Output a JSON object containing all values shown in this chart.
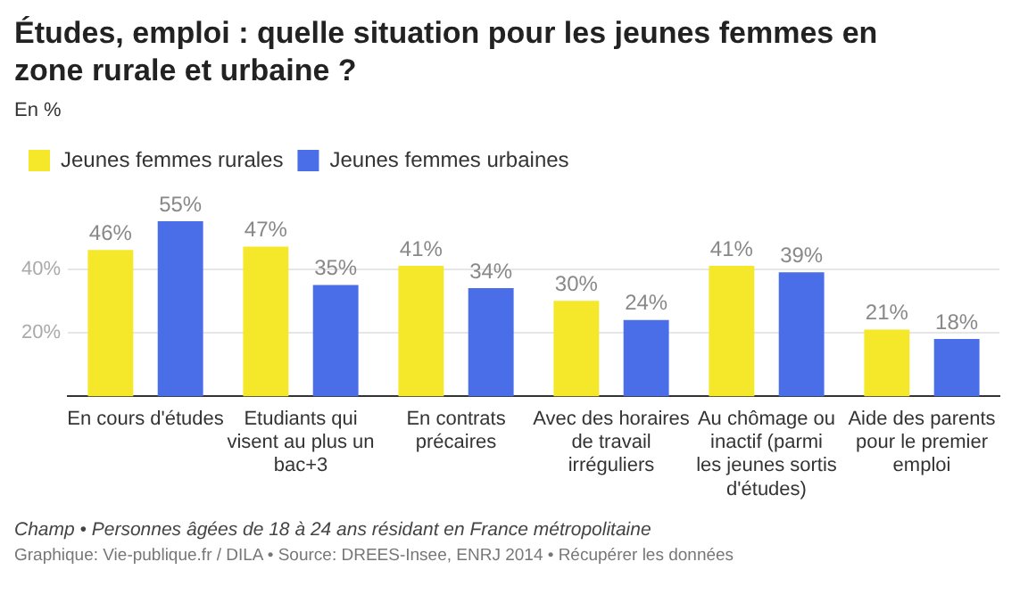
{
  "chart_data": {
    "type": "bar",
    "title": "Études, emploi : quelle situation pour les jeunes femmes en zone rurale et urbaine ?",
    "subtitle": "En %",
    "categories": [
      "En cours d'études",
      "Etudiants qui visent au plus un bac+3",
      "En contrats précaires",
      "Avec des horaires de travail irréguliers",
      "Au chômage ou inactif (parmi les jeunes sortis d'études)",
      "Aide des parents pour le premier emploi"
    ],
    "series": [
      {
        "name": "Jeunes femmes rurales",
        "color": "#f5e72a",
        "values": [
          46,
          47,
          41,
          30,
          41,
          21
        ],
        "value_labels": [
          "46%",
          "47%",
          "41%",
          "30%",
          "41%",
          "21%"
        ]
      },
      {
        "name": "Jeunes femmes urbaines",
        "color": "#4a6ee8",
        "values": [
          55,
          35,
          34,
          24,
          39,
          18
        ],
        "value_labels": [
          "55%",
          "35%",
          "34%",
          "24%",
          "39%",
          "18%"
        ]
      }
    ],
    "ylim": [
      0,
      55
    ],
    "yticks": [
      {
        "value": 20,
        "label": "20%"
      },
      {
        "value": 40,
        "label": "40%"
      }
    ],
    "grid": "y",
    "legend": "top left",
    "annotations": [
      "Champ • Personnes âgées de 18 à 24 ans résidant en France métropolitaine",
      "Graphique: Vie-publique.fr / DILA • Source: DREES-Insee, ENRJ 2014 • Récupérer les données"
    ]
  }
}
